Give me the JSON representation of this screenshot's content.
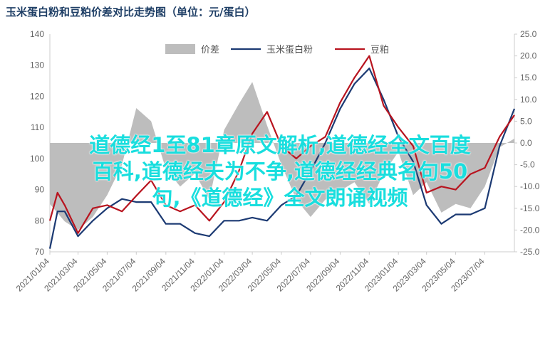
{
  "overlay": {
    "line1": "道德经1至81章原文解析,道德经全文百度",
    "line2": "百科,道德经夫为不争,道德经经典名句50",
    "line3": "句,《道德经》全文朗诵视频"
  },
  "colors": {
    "spread": "#bdbdbd",
    "corn": "#1c3a73",
    "soy": "#b8141f",
    "axis": "#cccccc",
    "overlay": "#19dede"
  },
  "chart_data": {
    "type": "line",
    "title": "玉米蛋白粉和豆粕价差对比走势图（单位：元/蛋白）",
    "legend_position": "top",
    "x_tick_labels": [
      "2021/01/04",
      "2021/03/04",
      "2021/05/04",
      "2021/07/04",
      "2021/09/04",
      "2021/11/04",
      "2022/01/04",
      "2022/03/04",
      "2022/05/04",
      "2022/07/04",
      "2022/09/04",
      "2022/11/04",
      "2023/01/04",
      "2023/03/04",
      "2023/05/04",
      "2023/07/04"
    ],
    "left_axis": {
      "ylim": [
        70,
        140
      ],
      "ticks": [
        70,
        80,
        90,
        100,
        110,
        120,
        130,
        140
      ]
    },
    "right_axis": {
      "ylim": [
        -25,
        25
      ],
      "ticks": [
        "-25.0",
        "-20.0",
        "-15.0",
        "-10.0",
        "-5.0",
        "0.0",
        "5.0",
        "10.0",
        "15.0",
        "20.0",
        "25.0"
      ]
    },
    "grid": false,
    "series": [
      {
        "name": "价差",
        "axis": "right",
        "style": "area",
        "x": [
          "2021/01/04",
          "2021/02/04",
          "2021/03/04",
          "2021/04/04",
          "2021/05/04",
          "2021/06/04",
          "2021/07/04",
          "2021/08/04",
          "2021/09/04",
          "2021/10/04",
          "2021/11/04",
          "2021/12/04",
          "2022/01/04",
          "2022/02/04",
          "2022/03/04",
          "2022/04/04",
          "2022/05/04",
          "2022/06/04",
          "2022/07/04",
          "2022/08/04",
          "2022/09/04",
          "2022/10/04",
          "2022/11/04",
          "2022/12/04",
          "2023/01/04",
          "2023/02/04",
          "2023/03/04",
          "2023/04/04",
          "2023/05/04",
          "2023/06/04",
          "2023/07/04",
          "2023/08/04",
          "2023/09/04"
        ],
        "values": [
          -14,
          -18,
          -20,
          -17,
          -12,
          -5,
          8,
          5,
          -6,
          -10,
          -7,
          -13,
          3,
          9,
          14,
          4,
          -5,
          -13,
          -17,
          -13,
          -11,
          -9,
          -14,
          -7,
          -2,
          -12,
          -9,
          -16,
          -14,
          -15,
          -10,
          -1,
          1
        ]
      },
      {
        "name": "玉米蛋白粉",
        "axis": "left",
        "style": "line",
        "x": [
          "2021/01/04",
          "2021/01/20",
          "2021/02/04",
          "2021/03/04",
          "2021/04/04",
          "2021/05/04",
          "2021/06/04",
          "2021/07/04",
          "2021/08/04",
          "2021/09/04",
          "2021/10/04",
          "2021/11/04",
          "2021/12/04",
          "2022/01/04",
          "2022/02/04",
          "2022/03/04",
          "2022/04/04",
          "2022/05/04",
          "2022/06/04",
          "2022/07/04",
          "2022/08/04",
          "2022/09/04",
          "2022/10/04",
          "2022/11/04",
          "2022/12/04",
          "2023/01/04",
          "2023/02/04",
          "2023/03/04",
          "2023/04/04",
          "2023/05/04",
          "2023/06/04",
          "2023/07/04",
          "2023/08/04",
          "2023/09/04"
        ],
        "values": [
          71,
          83,
          83,
          75,
          80,
          84,
          87,
          86,
          86,
          79,
          79,
          76,
          75,
          80,
          80,
          81,
          80,
          85,
          88,
          96,
          105,
          116,
          124,
          129,
          119,
          107,
          99,
          85,
          79,
          82,
          82,
          84,
          104,
          116
        ]
      },
      {
        "name": "豆粕",
        "axis": "left",
        "style": "line",
        "x": [
          "2021/01/04",
          "2021/01/20",
          "2021/02/04",
          "2021/03/04",
          "2021/04/04",
          "2021/05/04",
          "2021/06/04",
          "2021/07/04",
          "2021/08/04",
          "2021/09/04",
          "2021/10/04",
          "2021/11/04",
          "2021/12/04",
          "2022/01/04",
          "2022/02/04",
          "2022/03/04",
          "2022/04/04",
          "2022/05/04",
          "2022/06/04",
          "2022/07/04",
          "2022/08/04",
          "2022/09/04",
          "2022/10/04",
          "2022/11/04",
          "2022/12/04",
          "2023/01/04",
          "2023/02/04",
          "2023/03/04",
          "2023/04/04",
          "2023/05/04",
          "2023/06/04",
          "2023/07/04",
          "2023/08/04",
          "2023/09/04"
        ],
        "values": [
          80,
          89,
          85,
          76,
          84,
          85,
          83,
          88,
          93,
          85,
          83,
          85,
          80,
          86,
          96,
          108,
          115,
          104,
          100,
          104,
          107,
          118,
          126,
          133,
          117,
          110,
          104,
          89,
          91,
          90,
          95,
          97,
          107,
          114
        ]
      }
    ]
  }
}
